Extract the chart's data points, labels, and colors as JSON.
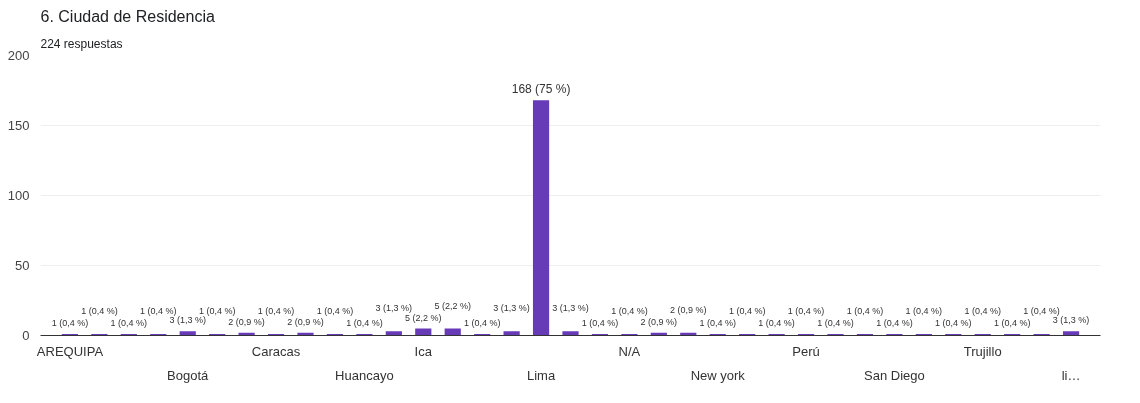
{
  "chart_data": {
    "type": "bar",
    "title": "6. Ciudad de Residencia",
    "subtitle": "224 respuestas",
    "categories": [
      "AREQUIPA",
      null,
      null,
      null,
      "Bogotá",
      null,
      null,
      "Caracas",
      null,
      null,
      "Huancayo",
      null,
      "Ica",
      null,
      null,
      null,
      "Lima",
      null,
      null,
      "N/A",
      null,
      null,
      "New york",
      null,
      null,
      "Perú",
      null,
      null,
      "San Diego",
      null,
      null,
      "Trujillo",
      null,
      null,
      "li…"
    ],
    "values": [
      1,
      1,
      1,
      1,
      3,
      1,
      2,
      1,
      2,
      1,
      1,
      3,
      5,
      5,
      1,
      3,
      168,
      3,
      1,
      1,
      2,
      2,
      1,
      1,
      1,
      1,
      1,
      1,
      1,
      1,
      1,
      1,
      1,
      1,
      3
    ],
    "value_labels": [
      "1 (0,4 %)",
      "1 (0,4 %)",
      "1 (0,4 %)",
      "1 (0,4 %)",
      "3 (1,3 %)",
      "1 (0,4 %)",
      "2 (0,9 %)",
      "1 (0,4 %)",
      "2 (0,9 %)",
      "1 (0,4 %)",
      "1 (0,4 %)",
      "3 (1,3 %)",
      "5 (2,2 %)",
      "5 (2,2 %)",
      "1 (0,4 %)",
      "3 (1,3 %)",
      "168 (75 %)",
      "3 (1,3 %)",
      "1 (0,4 %)",
      "1 (0,4 %)",
      "2 (0,9 %)",
      "2 (0,9 %)",
      "1 (0,4 %)",
      "1 (0,4 %)",
      "1 (0,4 %)",
      "1 (0,4 %)",
      "1 (0,4 %)",
      "1 (0,4 %)",
      "1 (0,4 %)",
      "1 (0,4 %)",
      "1 (0,4 %)",
      "1 (0,4 %)",
      "1 (0,4 %)",
      "1 (0,4 %)",
      "3 (1,3 %)"
    ],
    "color": "#673ab7",
    "ylim": [
      0,
      200
    ],
    "yticks": [
      0,
      50,
      100,
      150,
      200
    ],
    "grid": "y"
  }
}
